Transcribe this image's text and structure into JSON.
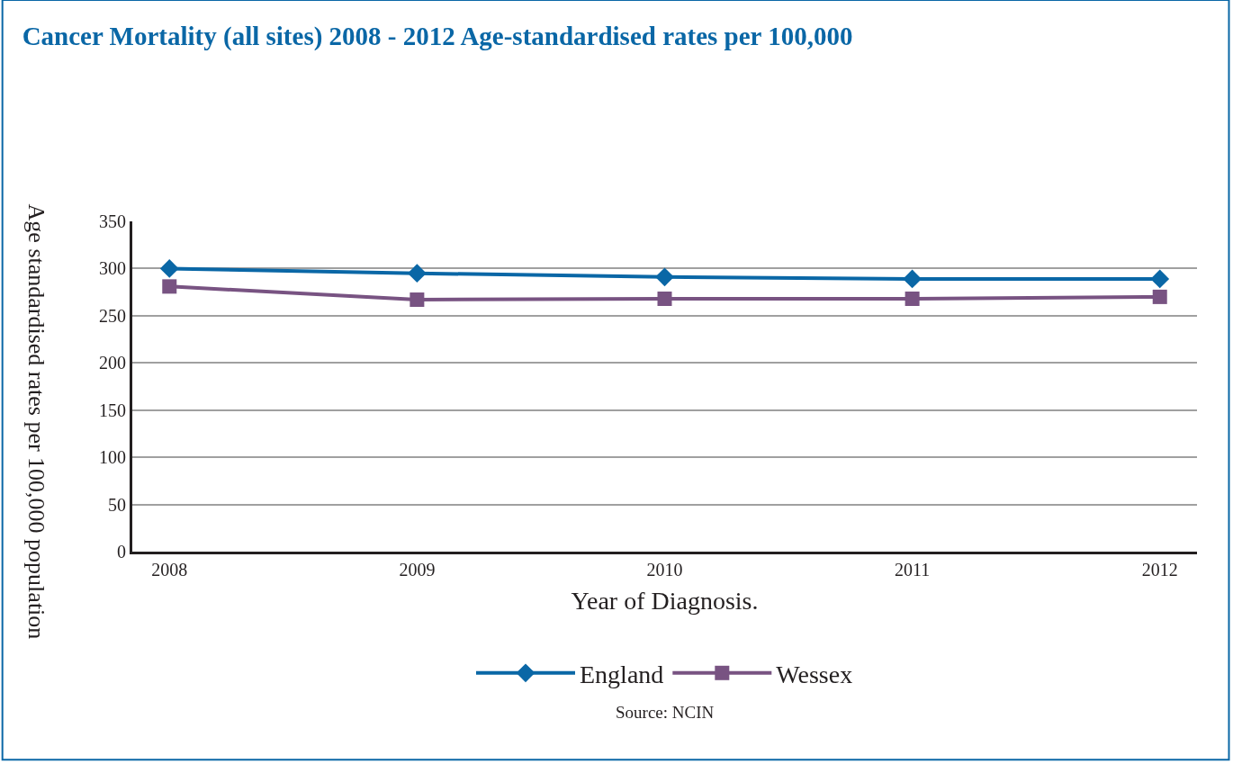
{
  "chart_data": {
    "type": "line",
    "title": "Cancer Mortality (all sites) 2008 - 2012 Age-standardised rates per 100,000",
    "xlabel": "Year of Diagnosis.",
    "ylabel": "Age standardised rates per 100,000 population",
    "categories": [
      "2008",
      "2009",
      "2010",
      "2011",
      "2012"
    ],
    "series": [
      {
        "name": "England",
        "color": "#0a67a6",
        "marker": "diamond",
        "values": [
          300,
          295,
          291,
          289,
          289
        ]
      },
      {
        "name": "Wessex",
        "color": "#785382",
        "marker": "square",
        "values": [
          281,
          267,
          268,
          268,
          270
        ]
      }
    ],
    "ylim": [
      0,
      350
    ],
    "yticks": [
      0,
      50,
      100,
      150,
      200,
      250,
      300,
      350
    ],
    "grid": "y",
    "legend": "bottom",
    "line_style": "solid",
    "annotations": [
      "Source: NCIN"
    ]
  }
}
